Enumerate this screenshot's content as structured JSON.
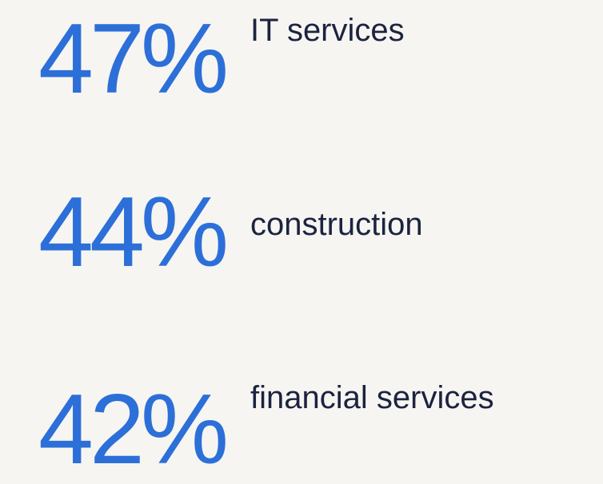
{
  "items": [
    {
      "value": "47%",
      "label": "IT services"
    },
    {
      "value": "44%",
      "label": "construction"
    },
    {
      "value": "42%",
      "label": "financial services"
    }
  ]
}
